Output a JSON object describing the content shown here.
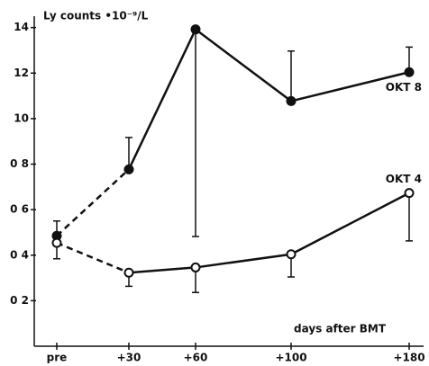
{
  "chart_data": {
    "type": "line",
    "y_label": "Ly counts •10⁻⁹/L",
    "x_label": "days after BMT",
    "categories": [
      "pre",
      "+30",
      "+60",
      "+100",
      "+180"
    ],
    "ylim": [
      0,
      1.45
    ],
    "yticks": [
      {
        "value": 0.2,
        "label": "0 2"
      },
      {
        "value": 0.4,
        "label": "0 4"
      },
      {
        "value": 0.6,
        "label": "0 6"
      },
      {
        "value": 0.8,
        "label": "0 8"
      },
      {
        "value": 1.0,
        "label": "10"
      },
      {
        "value": 1.2,
        "label": "12"
      },
      {
        "value": 1.4,
        "label": "14"
      }
    ],
    "dash_first_segment": true,
    "series": [
      {
        "name": "OKT 8",
        "marker": "filled",
        "color": "#111111",
        "values": [
          0.485,
          0.777,
          1.392,
          1.077,
          1.204
        ],
        "errors": [
          0.065,
          0.14,
          0.91,
          0.22,
          0.11
        ],
        "error_sides": [
          "up",
          "up",
          "down",
          "up",
          "up"
        ]
      },
      {
        "name": "OKT 4",
        "marker": "open",
        "color": "#111111",
        "values": [
          0.454,
          0.323,
          0.346,
          0.404,
          0.673
        ],
        "errors": [
          0.07,
          0.06,
          0.11,
          0.1,
          0.21
        ],
        "error_sides": [
          "down",
          "down",
          "down",
          "down",
          "down"
        ]
      }
    ]
  }
}
